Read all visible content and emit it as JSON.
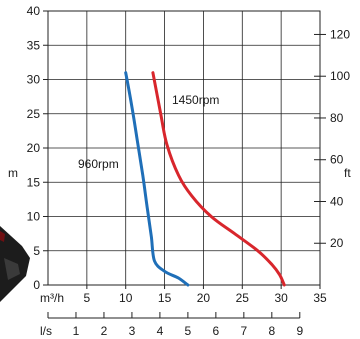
{
  "chart_data": {
    "type": "line",
    "title": "",
    "grid": true,
    "xlim": [
      0,
      35
    ],
    "ylim": [
      0,
      40
    ],
    "x_ticks": [
      5,
      10,
      15,
      20,
      25,
      30,
      35
    ],
    "y_ticks": [
      0,
      5,
      10,
      15,
      20,
      25,
      30,
      35,
      40
    ],
    "x_unit_label": "m³/h",
    "y_unit_label": "m",
    "secondary_x": {
      "unit_label": "l/s",
      "ticks": [
        1,
        2,
        3,
        4,
        5,
        6,
        7,
        8,
        9
      ]
    },
    "secondary_y": {
      "unit_label": "ft",
      "ticks": [
        20,
        40,
        60,
        80,
        100,
        120
      ]
    },
    "series": [
      {
        "name": "960rpm",
        "color": "#1f6fb8",
        "x": [
          10.0,
          10.8,
          11.5,
          12.2,
          12.8,
          13.3,
          13.7,
          15.0,
          16.8,
          18.0
        ],
        "y": [
          31.0,
          26.0,
          21.0,
          16.0,
          11.0,
          7.0,
          3.5,
          2.0,
          1.0,
          0.0
        ]
      },
      {
        "name": "1450rpm",
        "color": "#d8262c",
        "x": [
          13.5,
          14.5,
          15.3,
          16.8,
          18.5,
          21.0,
          24.0,
          27.0,
          28.8,
          29.8,
          30.4
        ],
        "y": [
          31.0,
          25.0,
          20.5,
          16.0,
          13.0,
          10.0,
          7.5,
          5.0,
          3.0,
          1.5,
          0.0
        ]
      }
    ],
    "annotations": {
      "series_0_label": "960rpm",
      "series_1_label": "1450rpm"
    }
  }
}
